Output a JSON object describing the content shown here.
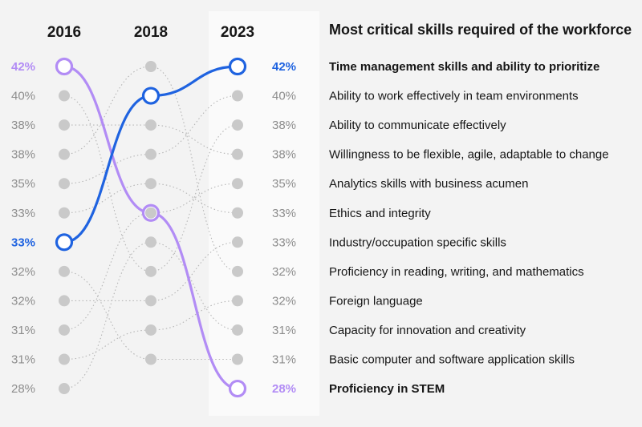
{
  "chart_data": {
    "type": "line",
    "title": "Most critical skills required of the workforce",
    "years": [
      "2016",
      "2018",
      "2023"
    ],
    "colors": {
      "highlight_blue": "#1f63e0",
      "highlight_purple": "#b28cf5",
      "neutral_dot": "#c9c9c9",
      "neutral_line": "#b5b5b5",
      "text_gray": "#8d8d8d",
      "panel": "#fafafa"
    },
    "rank_values": {
      "2016": [
        "42%",
        "40%",
        "38%",
        "38%",
        "35%",
        "33%",
        "33%",
        "32%",
        "32%",
        "31%",
        "31%",
        "28%"
      ],
      "2023": [
        "42%",
        "40%",
        "38%",
        "38%",
        "35%",
        "33%",
        "33%",
        "32%",
        "32%",
        "31%",
        "31%",
        "28%"
      ]
    },
    "skills": [
      {
        "name": "Time management skills and ability to prioritize",
        "highlight": "blue",
        "ranks": [
          7,
          2,
          1
        ]
      },
      {
        "name": "Ability to work effectively in team environments",
        "highlight": null,
        "ranks": [
          5,
          4,
          2
        ]
      },
      {
        "name": "Ability to communicate effectively",
        "highlight": null,
        "ranks": [
          2,
          8,
          3
        ]
      },
      {
        "name": "Willingness to be flexible, agile, adaptable to change",
        "highlight": null,
        "ranks": [
          3,
          3,
          4
        ]
      },
      {
        "name": "Analytics skills with business acumen",
        "highlight": null,
        "ranks": [
          10,
          6,
          5
        ]
      },
      {
        "name": "Ethics and integrity",
        "highlight": null,
        "ranks": [
          6,
          5,
          6
        ]
      },
      {
        "name": "Industry/occupation specific skills",
        "highlight": null,
        "ranks": [
          9,
          9,
          7
        ]
      },
      {
        "name": "Proficiency in reading, writing, and mathematics",
        "highlight": null,
        "ranks": [
          4,
          1,
          8
        ]
      },
      {
        "name": "Foreign language",
        "highlight": null,
        "ranks": [
          11,
          10,
          9
        ]
      },
      {
        "name": "Capacity for innovation and creativity",
        "highlight": null,
        "ranks": [
          12,
          7,
          10
        ]
      },
      {
        "name": "Basic computer and software application skills",
        "highlight": null,
        "ranks": [
          8,
          11,
          11
        ]
      },
      {
        "name": "Proficiency in STEM",
        "highlight": "purple",
        "ranks": [
          1,
          6,
          12
        ]
      }
    ]
  }
}
